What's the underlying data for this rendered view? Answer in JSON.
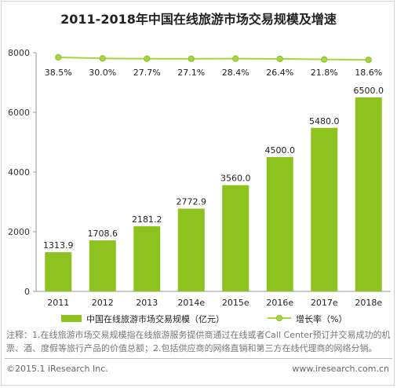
{
  "title": "2011-2018年中国在线旅游市场交易规模及增速",
  "chart_data": {
    "type": "bar",
    "categories": [
      "2011",
      "2012",
      "2013",
      "2014e",
      "2015e",
      "2016e",
      "2017e",
      "2018e"
    ],
    "series": [
      {
        "name": "中国在线旅游市场交易规模（亿元）",
        "type": "bar",
        "values": [
          1313.9,
          1708.6,
          2181.2,
          2772.9,
          3560.0,
          4500.0,
          5480.0,
          6500.0
        ],
        "labels": [
          "1313.9",
          "1708.6",
          "2181.2",
          "2772.9",
          "3560.0",
          "4500.0",
          "5480.0",
          "6500.0"
        ],
        "color": "#8dc21f"
      },
      {
        "name": "增长率（%）",
        "type": "line",
        "values": [
          38.5,
          30.0,
          27.7,
          27.1,
          28.4,
          26.4,
          21.8,
          18.6
        ],
        "labels": [
          "38.5%",
          "30.0%",
          "27.7%",
          "27.1%",
          "28.4%",
          "26.4%",
          "21.8%",
          "18.6%"
        ],
        "color": "#a5d63c"
      }
    ],
    "yticks": [
      "0",
      "2000",
      "4000",
      "6000",
      "8000"
    ],
    "ylim": [
      0,
      8000
    ],
    "legend_position": "bottom",
    "grid": false
  },
  "notes": "注释：1.在线旅游市场交易规模指在线旅游服务提供商通过在线或者Call Center预订并交易成功的机票、酒、度假等旅行产品的价值总额；2.包括供应商的网络直销和第三方在线代理商的网络分销。",
  "footer": {
    "left": "©2015.1 iResearch Inc.",
    "right": "www.iresearch.com.cn"
  }
}
